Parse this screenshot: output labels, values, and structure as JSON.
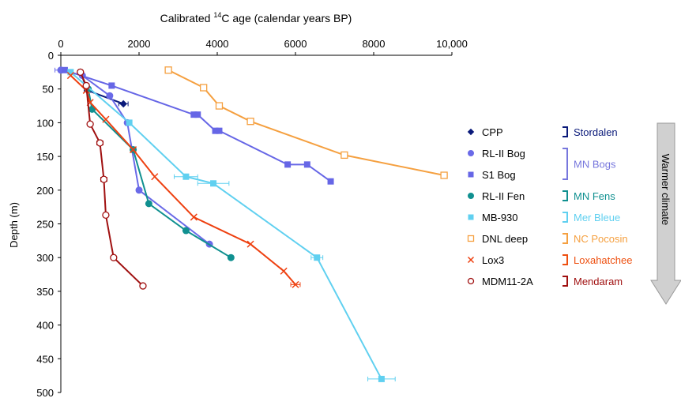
{
  "chart_data": {
    "type": "line",
    "title": "",
    "xlabel_prefix": "Calibrated ",
    "xlabel_sup": "14",
    "xlabel_suffix": "C age (calendar years BP)",
    "ylabel": "Depth (m)",
    "xlim": [
      0,
      10000
    ],
    "ylim": [
      0,
      500
    ],
    "y_inverted": true,
    "x_axis_position": "top",
    "x_ticks": [
      0,
      2000,
      4000,
      6000,
      8000,
      10000
    ],
    "x_tick_labels": [
      "0",
      "2000",
      "4000",
      "6000",
      "8000",
      "10,000"
    ],
    "y_ticks": [
      0,
      50,
      100,
      150,
      200,
      250,
      300,
      350,
      400,
      450,
      500
    ],
    "y_tick_labels": [
      "0",
      "50",
      "100",
      "150",
      "200",
      "250",
      "300",
      "350",
      "400",
      "450",
      "500"
    ],
    "grid": false,
    "legend_position": "right",
    "series": [
      {
        "name": "CPP",
        "color": "#0a1a7a",
        "marker": "diamond",
        "x": [
          500,
          680,
          1600
        ],
        "y": [
          25,
          52,
          72
        ],
        "err": [
          0,
          80,
          120
        ]
      },
      {
        "name": "RL-II Bog",
        "color": "#6a6ae8",
        "marker": "circle",
        "x": [
          0,
          550,
          1250,
          1700,
          2000,
          3800
        ],
        "y": [
          22,
          30,
          60,
          100,
          200,
          280
        ],
        "err": [
          150,
          0,
          0,
          0,
          0,
          0
        ]
      },
      {
        "name": "S1 Bog",
        "color": "#6666e6",
        "marker": "square",
        "x": [
          100,
          1300,
          3400,
          3500,
          3950,
          4050,
          5800,
          6300,
          6900
        ],
        "y": [
          22,
          45,
          88,
          88,
          112,
          112,
          162,
          162,
          187
        ],
        "err": [
          0,
          0,
          0,
          0,
          0,
          0,
          0,
          0,
          0
        ]
      },
      {
        "name": "RL-II Fen",
        "color": "#109090",
        "marker": "circle",
        "x": [
          700,
          800,
          1850,
          2250,
          3200,
          4350
        ],
        "y": [
          50,
          80,
          140,
          220,
          260,
          300
        ],
        "err": [
          0,
          0,
          0,
          0,
          0,
          0
        ]
      },
      {
        "name": "MB-930",
        "color": "#60d0f0",
        "marker": "square",
        "x": [
          250,
          1750,
          3200,
          3900,
          6550,
          8200
        ],
        "y": [
          25,
          100,
          180,
          190,
          300,
          480
        ],
        "err": [
          0,
          0,
          300,
          400,
          150,
          350
        ]
      },
      {
        "name": "DNL deep",
        "color": "#f5a040",
        "marker": "open-square",
        "x": [
          2750,
          3650,
          4050,
          4850,
          7250,
          9800
        ],
        "y": [
          22,
          48,
          75,
          98,
          148,
          178
        ],
        "err": [
          0,
          0,
          0,
          0,
          0,
          80
        ]
      },
      {
        "name": "Lox3",
        "color": "#ee4010",
        "marker": "cross",
        "x": [
          250,
          650,
          750,
          1150,
          1850,
          2400,
          3400,
          4850,
          5700,
          6000
        ],
        "y": [
          30,
          52,
          70,
          95,
          140,
          180,
          240,
          280,
          320,
          340
        ],
        "err": [
          0,
          0,
          0,
          0,
          0,
          0,
          0,
          0,
          0,
          120
        ]
      },
      {
        "name": "MDM11-2A",
        "color": "#a01010",
        "marker": "open-circle",
        "x": [
          500,
          650,
          750,
          1000,
          1100,
          1150,
          1350,
          2100
        ],
        "y": [
          25,
          45,
          102,
          130,
          184,
          237,
          300,
          342
        ],
        "err": [
          0,
          0,
          0,
          80,
          80,
          60,
          0,
          0
        ]
      }
    ],
    "groups": [
      {
        "label": "Stordalen",
        "color": "#0a1a7a",
        "spans": [
          0,
          0
        ]
      },
      {
        "label": "MN Bogs",
        "color": "#7777dd",
        "spans": [
          1,
          2
        ]
      },
      {
        "label": "MN Fens",
        "color": "#109090",
        "spans": [
          3,
          3
        ]
      },
      {
        "label": "Mer Bleue",
        "color": "#60d0f0",
        "spans": [
          4,
          4
        ]
      },
      {
        "label": "NC Pocosin",
        "color": "#f5a040",
        "spans": [
          5,
          5
        ]
      },
      {
        "label": "Loxahatchee",
        "color": "#ee5010",
        "spans": [
          6,
          6
        ]
      },
      {
        "label": "Mendaram",
        "color": "#a01010",
        "spans": [
          7,
          7
        ]
      }
    ],
    "arrow_label": "Warmer climate"
  }
}
